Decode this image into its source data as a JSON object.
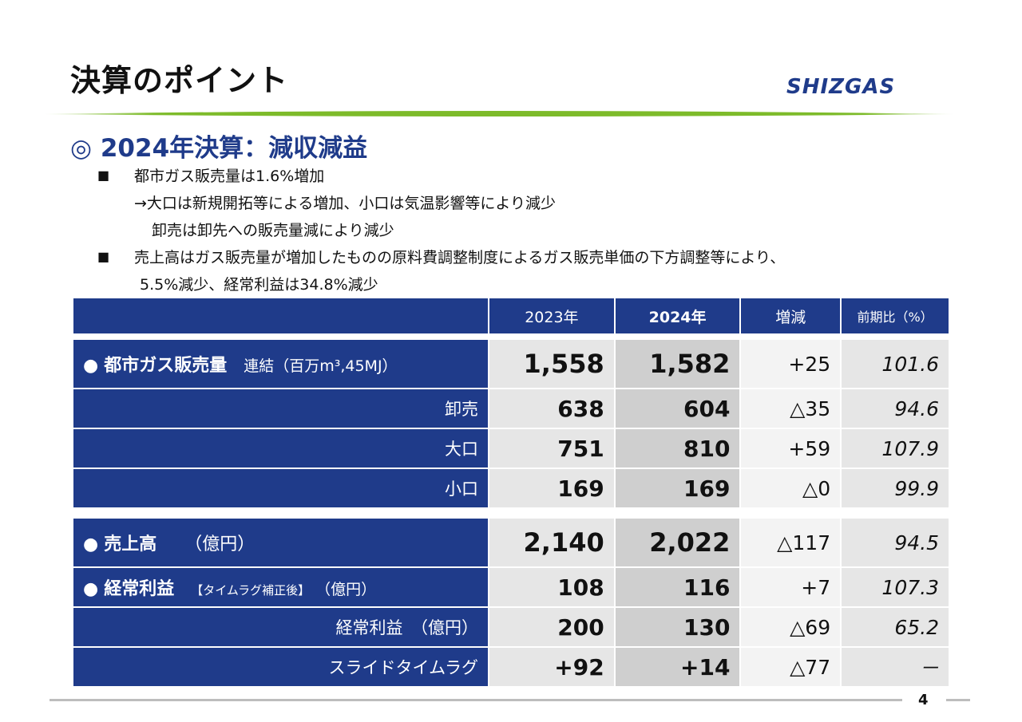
{
  "header": {
    "title": "決算のポイント",
    "logo_text": "SHIZGAS"
  },
  "section": {
    "mark": "◎",
    "heading": "2024年決算：減収減益"
  },
  "bullets": {
    "mark": "■",
    "line1": "都市ガス販売量は1.6%増加",
    "line2": "→大口は新規開拓等による増加、小口は気温影響等により減少",
    "line3": "卸売は卸先への販売量減により減少",
    "line4": "売上高はガス販売量が増加したものの原料費調整制度によるガス販売単価の下方調整等により、",
    "line5": "5.5%減少、経常利益は34.8%減少"
  },
  "table": {
    "headers": [
      "2023年",
      "2024年",
      "増減",
      "前期比（%）"
    ],
    "gas_volume": {
      "dot": "●",
      "label_bold": "都市ガス販売量",
      "label_rest": "連結（百万m³,45MJ）",
      "values": [
        "1,558",
        "1,582",
        "+25",
        "101.6"
      ]
    },
    "wholesale": {
      "label": "卸売",
      "values": [
        "638",
        "604",
        "△35",
        "94.6"
      ]
    },
    "large": {
      "label": "大口",
      "values": [
        "751",
        "810",
        "+59",
        "107.9"
      ]
    },
    "small": {
      "label": "小口",
      "values": [
        "169",
        "169",
        "△0",
        "99.9"
      ]
    },
    "sales": {
      "dot": "●",
      "label_bold": "売上高",
      "label_rest": "（億円）",
      "values": [
        "2,140",
        "2,022",
        "△117",
        "94.5"
      ]
    },
    "ordinary_adj": {
      "dot": "●",
      "label_bold": "経常利益",
      "label_tag": "【タイムラグ補正後】",
      "label_rest": "（億円）",
      "values": [
        "108",
        "116",
        "+7",
        "107.3"
      ]
    },
    "ordinary": {
      "label": "経常利益　（億円）",
      "values": [
        "200",
        "130",
        "△69",
        "65.2"
      ]
    },
    "slide": {
      "label": "スライドタイムラグ",
      "values": [
        "+92",
        "+14",
        "△77",
        "－"
      ]
    }
  },
  "footer": {
    "page_number": "4"
  },
  "colors": {
    "navy": "#1f3b8a",
    "green": "#7dbb2a"
  }
}
